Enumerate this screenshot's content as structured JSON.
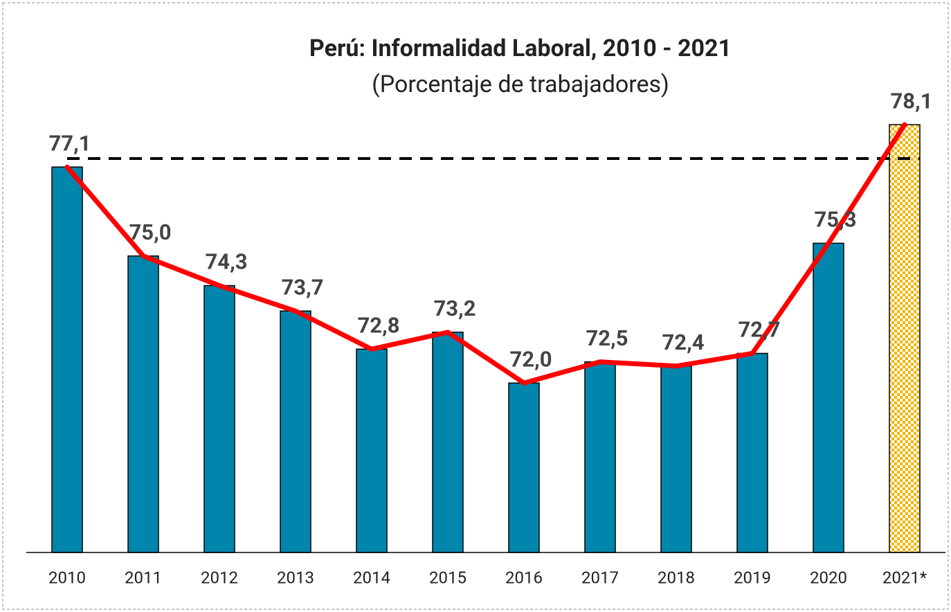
{
  "chart_data": {
    "type": "bar_line",
    "title": "Perú: Informalidad Laboral, 2010 - 2021",
    "subtitle": "(Porcentaje de trabajadores)",
    "categories": [
      "2010",
      "2011",
      "2012",
      "2013",
      "2014",
      "2015",
      "2016",
      "2017",
      "2018",
      "2019",
      "2020",
      "2021*"
    ],
    "values": [
      77.1,
      75.0,
      74.3,
      73.7,
      72.8,
      73.2,
      72.0,
      72.5,
      72.4,
      72.7,
      75.3,
      78.1
    ],
    "value_labels": [
      "77,1",
      "75,0",
      "74,3",
      "73,7",
      "72,8",
      "73,2",
      "72,0",
      "72,5",
      "72,4",
      "72,7",
      "75,3",
      "78,1"
    ],
    "colors": [
      "#0086ad",
      "#0086ad",
      "#0086ad",
      "#0086ad",
      "#0086ad",
      "#0086ad",
      "#0086ad",
      "#0086ad",
      "#0086ad",
      "#0086ad",
      "#0086ad",
      "checkered"
    ],
    "line_color": "#ff0000",
    "reference_line": 77.3,
    "ylim": [
      68,
      79
    ]
  }
}
